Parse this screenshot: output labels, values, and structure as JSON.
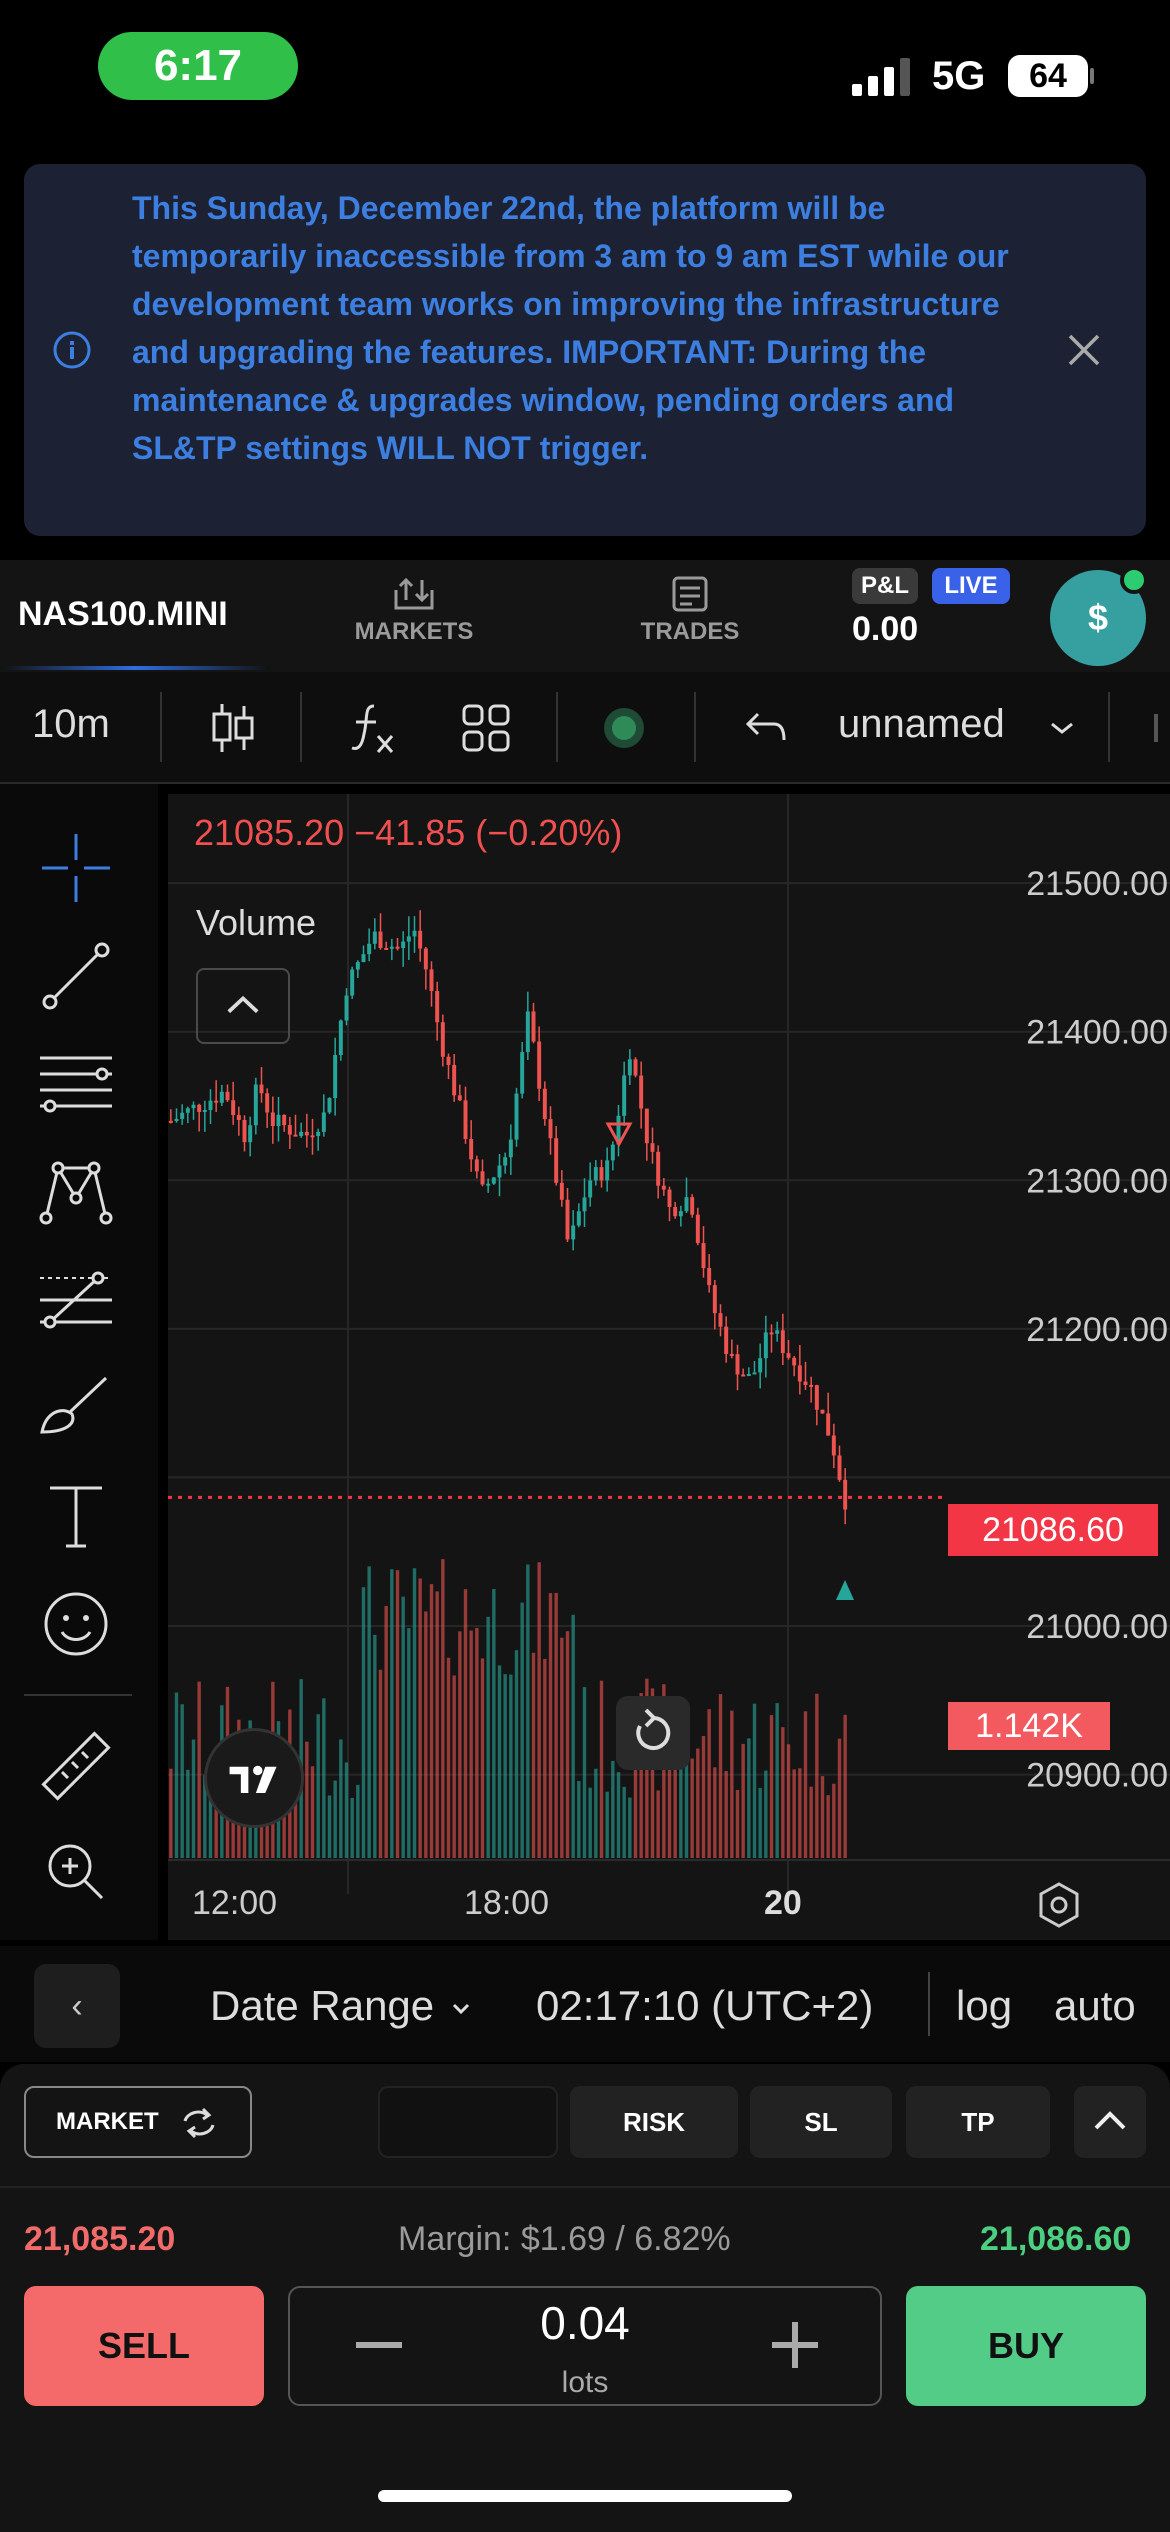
{
  "status_bar": {
    "time": "6:17",
    "network": "5G",
    "battery": "64"
  },
  "notice": {
    "text": "This Sunday, December 22nd, the platform will be temporarily inaccessible from 3 am to 9 am EST while our development team works on improving the infrastructure and upgrading the features. IMPORTANT: During the maintenance & upgrades window, pending orders and SL&TP settings WILL NOT trigger."
  },
  "header": {
    "symbol": "NAS100.MINI",
    "tabs": [
      {
        "label": "MARKETS"
      },
      {
        "label": "TRADES"
      }
    ],
    "pnl_label": "P&L",
    "live_label": "LIVE",
    "pnl_value": "0.00",
    "account_label": "$"
  },
  "chart_toolbar": {
    "interval": "10m",
    "layout_name": "unnamed"
  },
  "chart": {
    "price_header": "21085.20  −41.85 (−0.20%)",
    "volume_label": "Volume",
    "current_price_tag": "21086.60",
    "volume_tag": "1.142K",
    "y_axis_labels": [
      "21500.00",
      "21400.00",
      "21300.00",
      "21200.00",
      "21000.00",
      "20900.00"
    ],
    "x_axis_labels": [
      "12:00",
      "18:00",
      "20"
    ],
    "colors": {
      "up": "#26a69a",
      "down": "#ef5350",
      "price_line": "#f23645"
    }
  },
  "chart_data": {
    "type": "candlestick",
    "y_axis": {
      "range": [
        20860,
        21560
      ],
      "ticks": [
        20900,
        21000,
        21100,
        21200,
        21300,
        21400,
        21500
      ]
    },
    "x_axis": {
      "ticks": [
        "12:00",
        "18:00",
        "20"
      ]
    },
    "last_price": 21085.2,
    "change": -41.85,
    "change_percent": -0.2,
    "ask_price": 21086.6,
    "volume_last": "1.142K",
    "close_path": [
      {
        "x": 0,
        "y": 21340
      },
      {
        "x": 0.08,
        "y": 21360
      },
      {
        "x": 0.11,
        "y": 21330
      },
      {
        "x": 0.13,
        "y": 21365
      },
      {
        "x": 0.15,
        "y": 21340
      },
      {
        "x": 0.2,
        "y": 21330
      },
      {
        "x": 0.23,
        "y": 21345
      },
      {
        "x": 0.26,
        "y": 21430
      },
      {
        "x": 0.3,
        "y": 21465
      },
      {
        "x": 0.34,
        "y": 21455
      },
      {
        "x": 0.36,
        "y": 21470
      },
      {
        "x": 0.38,
        "y": 21440
      },
      {
        "x": 0.4,
        "y": 21395
      },
      {
        "x": 0.43,
        "y": 21345
      },
      {
        "x": 0.46,
        "y": 21290
      },
      {
        "x": 0.5,
        "y": 21320
      },
      {
        "x": 0.53,
        "y": 21410
      },
      {
        "x": 0.56,
        "y": 21330
      },
      {
        "x": 0.59,
        "y": 21255
      },
      {
        "x": 0.62,
        "y": 21300
      },
      {
        "x": 0.65,
        "y": 21310
      },
      {
        "x": 0.68,
        "y": 21390
      },
      {
        "x": 0.71,
        "y": 21320
      },
      {
        "x": 0.74,
        "y": 21280
      },
      {
        "x": 0.77,
        "y": 21290
      },
      {
        "x": 0.8,
        "y": 21220
      },
      {
        "x": 0.83,
        "y": 21180
      },
      {
        "x": 0.86,
        "y": 21165
      },
      {
        "x": 0.89,
        "y": 21200
      },
      {
        "x": 0.92,
        "y": 21180
      },
      {
        "x": 0.95,
        "y": 21160
      },
      {
        "x": 0.98,
        "y": 21125
      },
      {
        "x": 1,
        "y": 21085
      }
    ]
  },
  "range_bar": {
    "back_label": "‹",
    "date_range": "Date Range",
    "clock": "02:17:10 (UTC+2)",
    "log": "log",
    "auto": "auto"
  },
  "order_panel": {
    "market_label": "MARKET",
    "risk_label": "RISK",
    "sl_label": "SL",
    "tp_label": "TP",
    "sell_price": "21,085.20",
    "margin": "Margin: $1.69 / 6.82%",
    "buy_price": "21,086.60",
    "sell_label": "SELL",
    "buy_label": "BUY",
    "lots_value": "0.04",
    "lots_unit": "lots"
  }
}
